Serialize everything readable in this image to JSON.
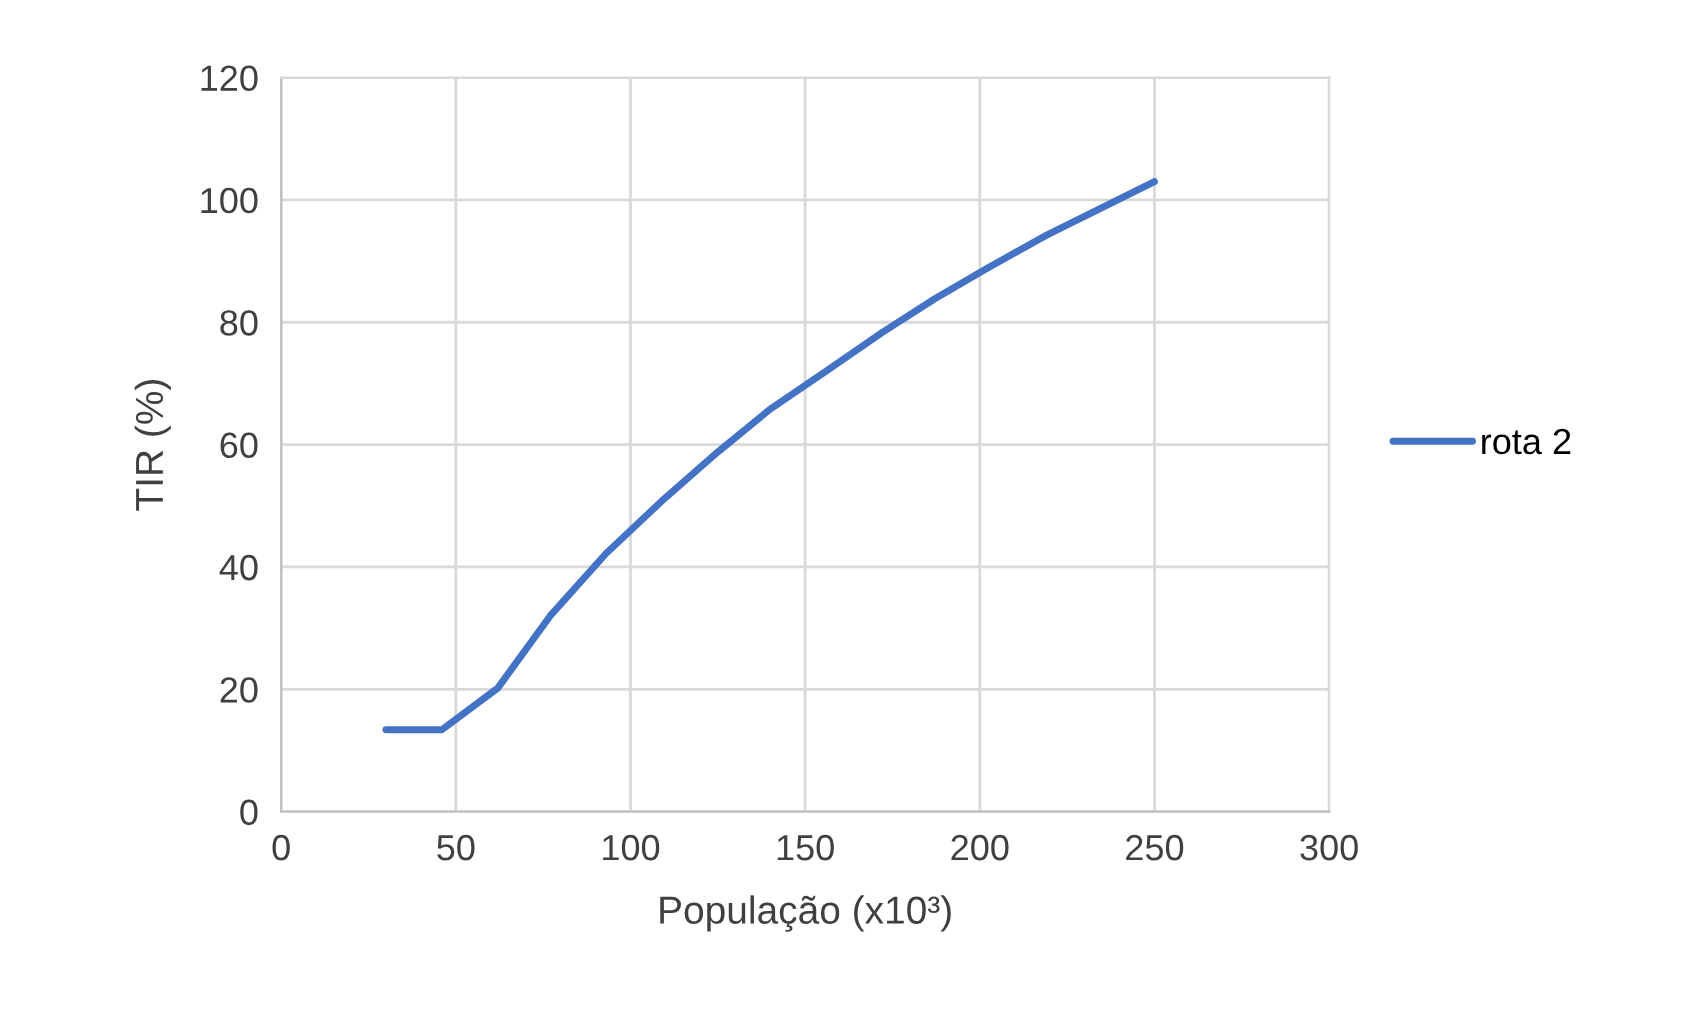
{
  "chart_data": {
    "type": "line",
    "xlabel": "População (x10³)",
    "ylabel": "TIR (%)",
    "xlim": [
      0,
      300
    ],
    "ylim": [
      0,
      120
    ],
    "xticks": [
      0,
      50,
      100,
      150,
      200,
      250,
      300
    ],
    "yticks": [
      0,
      20,
      40,
      60,
      80,
      100,
      120
    ],
    "grid": true,
    "legend": "right",
    "line_style": "solid",
    "marker": "none",
    "series": [
      {
        "name": "rota 2",
        "color": "#4472c4",
        "x": [
          30,
          46,
          62,
          77,
          93,
          109,
          125,
          140,
          156,
          172,
          187,
          202,
          219,
          250
        ],
        "values": [
          13.4,
          13.4,
          20.2,
          32,
          42.2,
          50.8,
          58.8,
          65.8,
          72,
          78.3,
          83.8,
          88.8,
          94.2,
          103
        ]
      }
    ]
  }
}
